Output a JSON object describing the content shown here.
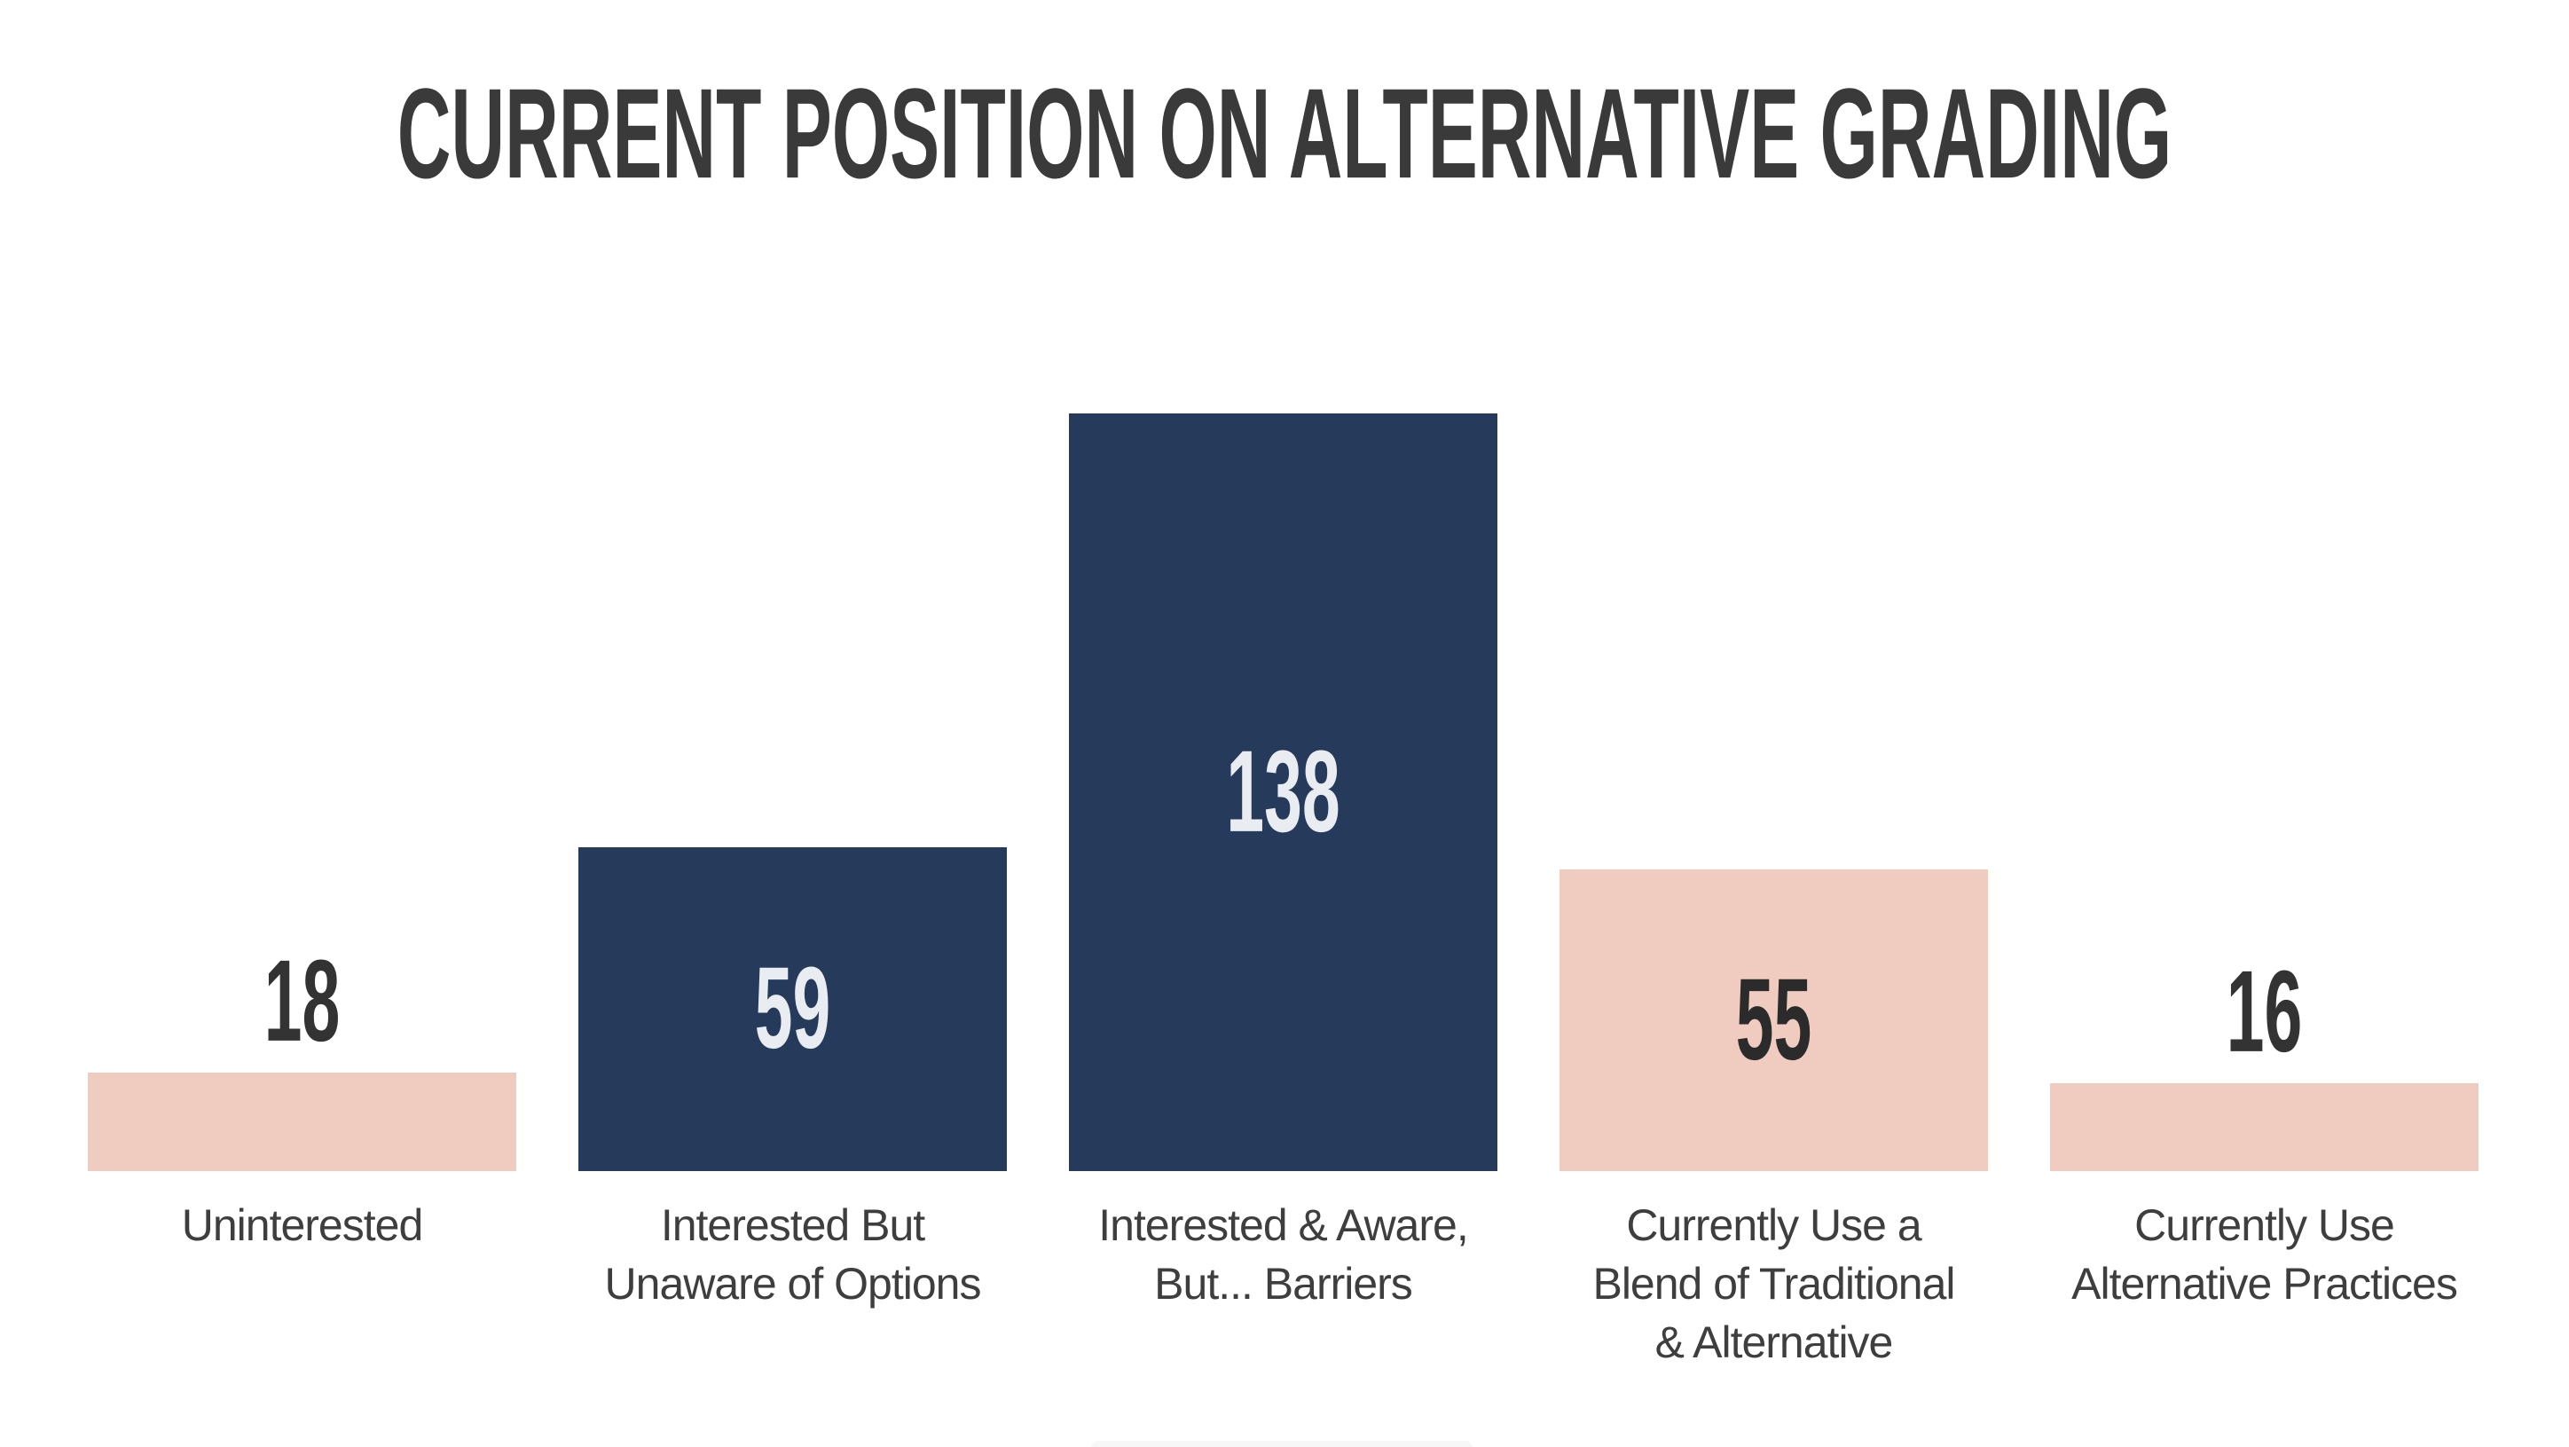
{
  "title": "CURRENT POSITION ON ALTERNATIVE GRADING",
  "chart_data": {
    "type": "bar",
    "title": "CURRENT POSITION ON ALTERNATIVE GRADING",
    "categories": [
      "Uninterested",
      "Interested But Unaware of Options",
      "Interested & Aware, But... Barriers",
      "Currently Use a Blend of Traditional & Alternative",
      "Currently Use Alternative Practices"
    ],
    "values": [
      18,
      59,
      138,
      55,
      16
    ],
    "bars": [
      {
        "category_lines": [
          "Uninterested"
        ],
        "value": 18,
        "bar_color": "#f0cbc0",
        "value_color": "#333333",
        "value_position": "above"
      },
      {
        "category_lines": [
          "Interested But",
          "Unaware of Options"
        ],
        "value": 59,
        "bar_color": "#263a5c",
        "value_color": "#e9ecf1",
        "value_position": "inside"
      },
      {
        "category_lines": [
          "Interested & Aware,",
          "But... Barriers"
        ],
        "value": 138,
        "bar_color": "#263a5c",
        "value_color": "#e9ecf1",
        "value_position": "inside"
      },
      {
        "category_lines": [
          "Currently Use a",
          "Blend of Traditional",
          "& Alternative"
        ],
        "value": 55,
        "bar_color": "#f0cbc0",
        "value_color": "#2b2b2b",
        "value_position": "inside"
      },
      {
        "category_lines": [
          "Currently Use",
          "Alternative Practices"
        ],
        "value": 16,
        "bar_color": "#f0cbc0",
        "value_color": "#333333",
        "value_position": "above"
      }
    ],
    "ylim": [
      0,
      145
    ],
    "xlabel": "",
    "ylabel": "",
    "grid": false,
    "legend": false,
    "colors": {
      "navy": "#263a5c",
      "pink": "#f0cbc0",
      "title_text": "#3a3a3a",
      "label_text": "#3e3e3e",
      "background": "#ffffff",
      "bottom_strip": "#f7f7f7"
    }
  }
}
